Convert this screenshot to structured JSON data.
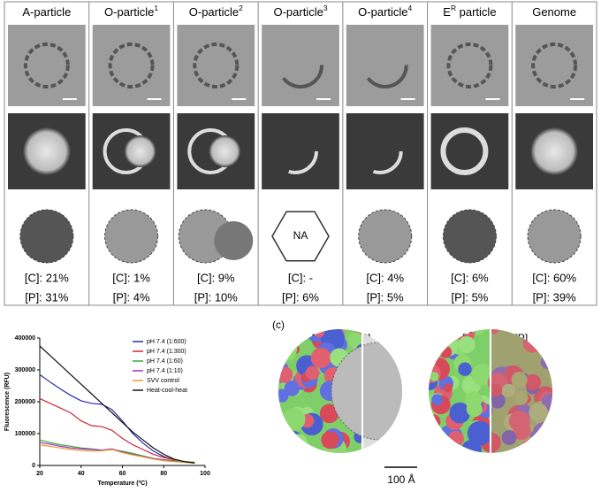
{
  "panel_a": {
    "columns": [
      {
        "name": "A-particle",
        "c": "[C]: 21%",
        "p": "[P]: 31%"
      },
      {
        "name": "O-particle",
        "sup": "1",
        "c": "[C]: 1%",
        "p": "[P]: 4%"
      },
      {
        "name": "O-particle",
        "sup": "2",
        "c": "[C]: 9%",
        "p": "[P]: 10%"
      },
      {
        "name": "O-particle",
        "sup": "3",
        "c": "[C]: -",
        "p": "[P]: 6%",
        "model": "NA"
      },
      {
        "name": "O-particle",
        "sup": "4",
        "c": "[C]: 4%",
        "p": "[P]: 5%"
      },
      {
        "name": "E",
        "sup": "R",
        "name_end": " particle",
        "c": "[C]: 6%",
        "p": "[P]: 5%"
      },
      {
        "name": "Genome",
        "c": "[C]: 60%",
        "p": "[P]: 39%"
      }
    ]
  },
  "chart_data": {
    "type": "line",
    "xlabel": "Temperature (ºC)",
    "ylabel": "Fluorescence (RFU)",
    "x": [
      20,
      25,
      30,
      35,
      40,
      45,
      50,
      55,
      60,
      65,
      70,
      75,
      80,
      85,
      90,
      95
    ],
    "xlim": [
      20,
      100
    ],
    "xticks": [
      20,
      40,
      60,
      80,
      100
    ],
    "ylim": [
      0,
      400000
    ],
    "yticks": [
      0,
      100000,
      200000,
      300000,
      400000
    ],
    "legend": "upper right",
    "series": [
      {
        "name": "pH 7.4 (1:600)",
        "color": "#2b2ba8",
        "values": [
          285000,
          262000,
          240000,
          220000,
          203000,
          195000,
          192000,
          175000,
          140000,
          100000,
          70000,
          45000,
          28000,
          18000,
          12000,
          8000
        ]
      },
      {
        "name": "pH 7.4 (1:300)",
        "color": "#c8283c",
        "values": [
          210000,
          195000,
          180000,
          165000,
          140000,
          125000,
          122000,
          110000,
          85000,
          65000,
          50000,
          35000,
          25000,
          18000,
          12000,
          8000
        ]
      },
      {
        "name": "pH 7.4 (1:60)",
        "color": "#3aa83a",
        "values": [
          80000,
          72000,
          65000,
          60000,
          55000,
          52000,
          48000,
          50000,
          45000,
          38000,
          30000,
          22000,
          18000,
          15000,
          12000,
          10000
        ]
      },
      {
        "name": "pH 7.4 (1:10)",
        "color": "#a030c0",
        "values": [
          72000,
          67000,
          60000,
          55000,
          52000,
          50000,
          48000,
          52000,
          42000,
          35000,
          28000,
          22000,
          17000,
          13000,
          10000,
          8000
        ]
      },
      {
        "name": "SVV control",
        "color": "#e89a30",
        "values": [
          65000,
          60000,
          55000,
          50000,
          47000,
          45000,
          46000,
          50000,
          40000,
          33000,
          27000,
          20000,
          15000,
          12000,
          10000,
          7000
        ]
      },
      {
        "name": "Heat-cool-heat",
        "color": "#111111",
        "values": [
          375000,
          345000,
          315000,
          285000,
          255000,
          225000,
          195000,
          165000,
          135000,
          105000,
          80000,
          55000,
          35000,
          20000,
          12000,
          8000
        ]
      }
    ]
  },
  "panel_c": {
    "label": "(c)",
    "left_title": "A-particle [P]",
    "right_title": "E",
    "right_sup": "R",
    "right_title_end": "-particle [P]",
    "scale": "100 Å"
  }
}
